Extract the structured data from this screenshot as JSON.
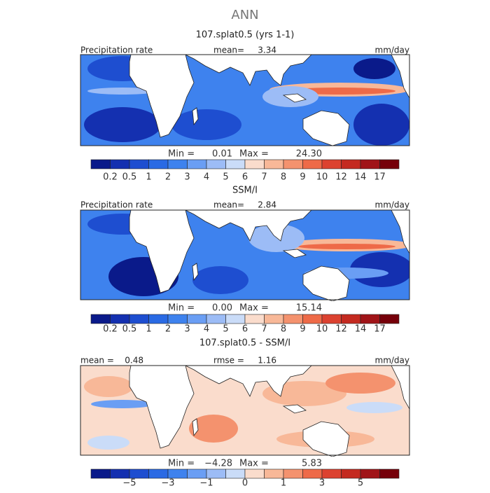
{
  "title": "ANN",
  "panels": [
    {
      "title": "107.splat0.5 (yrs 1-1)",
      "left_label": "Precipitation rate",
      "stat_label": "mean=",
      "stat_value": "3.34",
      "units": "mm/day",
      "min_label": "Min =",
      "min": "0.01",
      "max_label": "Max =",
      "max": "24.30",
      "colorbar": {
        "labels": [
          "0.2",
          "0.5",
          "1",
          "2",
          "3",
          "4",
          "5",
          "6",
          "7",
          "8",
          "9",
          "10",
          "12",
          "14",
          "17"
        ],
        "colors": [
          "#0a1a8a",
          "#1430b0",
          "#1e4ed0",
          "#2a6ae4",
          "#3e82ee",
          "#6a9ef4",
          "#9cbcf6",
          "#cadcf8",
          "#fadccc",
          "#f8b898",
          "#f4926e",
          "#ee6a48",
          "#dc4230",
          "#c42a20",
          "#a01418",
          "#76000a"
        ]
      }
    },
    {
      "title": "SSM/I",
      "left_label": "Precipitation rate",
      "stat_label": "mean=",
      "stat_value": "2.84",
      "units": "mm/day",
      "min_label": "Min =",
      "min": "0.00",
      "max_label": "Max =",
      "max": "15.14",
      "colorbar": {
        "labels": [
          "0.2",
          "0.5",
          "1",
          "2",
          "3",
          "4",
          "5",
          "6",
          "7",
          "8",
          "9",
          "10",
          "12",
          "14",
          "17"
        ],
        "colors": [
          "#0a1a8a",
          "#1430b0",
          "#1e4ed0",
          "#2a6ae4",
          "#3e82ee",
          "#6a9ef4",
          "#9cbcf6",
          "#cadcf8",
          "#fadccc",
          "#f8b898",
          "#f4926e",
          "#ee6a48",
          "#dc4230",
          "#c42a20",
          "#a01418",
          "#76000a"
        ]
      }
    },
    {
      "title": "107.splat0.5 - SSM/I",
      "left_label": "mean =",
      "left_value": "0.48",
      "stat_label": "rmse =",
      "stat_value": "1.16",
      "units": "mm/day",
      "min_label": "Min =",
      "min": "−4.28",
      "max_label": "Max =",
      "max": "5.83",
      "colorbar": {
        "labels": [
          null,
          "−5",
          null,
          "−3",
          null,
          "−1",
          null,
          "0",
          null,
          "1",
          null,
          "3",
          null,
          "5",
          null
        ],
        "colors": [
          "#0a1a8a",
          "#1430b0",
          "#1e4ed0",
          "#2a6ae4",
          "#3e82ee",
          "#6a9ef4",
          "#9cbcf6",
          "#cadcf8",
          "#fadccc",
          "#f8b898",
          "#f4926e",
          "#ee6a48",
          "#dc4230",
          "#c42a20",
          "#a01418",
          "#76000a"
        ]
      }
    }
  ]
}
